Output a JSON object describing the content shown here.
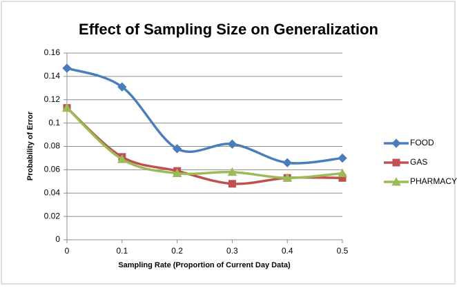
{
  "chart_data": {
    "type": "line",
    "title": "Effect of Sampling Size on Generalization",
    "x_label": "Sampling Rate (Proportion of Current Day Data)",
    "y_label": "Probability of Error",
    "x": [
      0,
      0.1,
      0.2,
      0.3,
      0.4,
      0.5
    ],
    "series": [
      {
        "name": "FOOD",
        "color": "#4a7ebb",
        "marker": "diamond",
        "values": [
          0.147,
          0.131,
          0.078,
          0.082,
          0.066,
          0.07
        ]
      },
      {
        "name": "GAS",
        "color": "#c0504d",
        "marker": "square",
        "values": [
          0.113,
          0.071,
          0.059,
          0.048,
          0.053,
          0.053
        ]
      },
      {
        "name": "PHARMACY",
        "color": "#9bbb59",
        "marker": "triangle",
        "values": [
          0.113,
          0.069,
          0.057,
          0.058,
          0.053,
          0.057
        ]
      }
    ],
    "xlim": [
      0,
      0.5
    ],
    "xticks": [
      0,
      0.1,
      0.2,
      0.3,
      0.4,
      0.5
    ],
    "ylim": [
      0,
      0.16
    ],
    "yticks": [
      0,
      0.02,
      0.04,
      0.06,
      0.08,
      0.1,
      0.12,
      0.14,
      0.16
    ],
    "grid": true,
    "smooth": true,
    "legend": "right"
  }
}
